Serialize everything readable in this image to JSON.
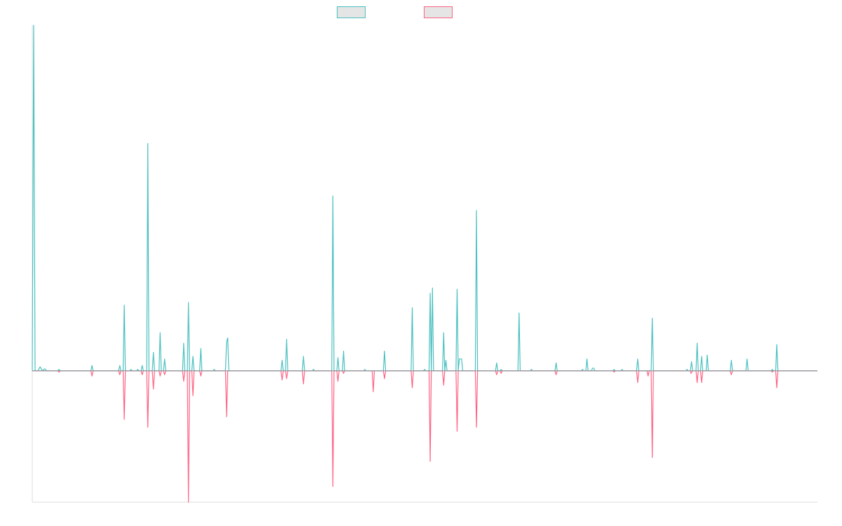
{
  "chart_data": {
    "type": "line",
    "title": "",
    "xlabel": "",
    "ylabel": "",
    "grid": false,
    "legend_position": "top-center",
    "ylim": [
      -100,
      263
    ],
    "xlim": [
      0,
      280
    ],
    "series": [
      {
        "name": "",
        "color": "#4bc0c0",
        "fill": "#e5e5e5",
        "points": [
          [
            0,
            0
          ],
          [
            0.5,
            263
          ],
          [
            1,
            0
          ],
          [
            2,
            0
          ],
          [
            2.8,
            3
          ],
          [
            3.6,
            0
          ],
          [
            4.4,
            1.5
          ],
          [
            5.2,
            0
          ],
          [
            9.1,
            0
          ],
          [
            9.5,
            1
          ],
          [
            10,
            0
          ],
          [
            20.9,
            0
          ],
          [
            21.3,
            4
          ],
          [
            21.7,
            0
          ],
          [
            30.8,
            0
          ],
          [
            31.2,
            4
          ],
          [
            31.6,
            0
          ],
          [
            32.4,
            0
          ],
          [
            32.8,
            50
          ],
          [
            33.2,
            0
          ],
          [
            34.8,
            0
          ],
          [
            35.2,
            1
          ],
          [
            35.6,
            0
          ],
          [
            37.2,
            0
          ],
          [
            37.6,
            1
          ],
          [
            38,
            0
          ],
          [
            38.8,
            0
          ],
          [
            39.2,
            4
          ],
          [
            39.6,
            0
          ],
          [
            40.8,
            0
          ],
          [
            41.2,
            173
          ],
          [
            41.6,
            0
          ],
          [
            42.8,
            0
          ],
          [
            43.2,
            14
          ],
          [
            43.6,
            0
          ],
          [
            45.2,
            0
          ],
          [
            45.6,
            29
          ],
          [
            46,
            0
          ],
          [
            46.8,
            0
          ],
          [
            47.2,
            9
          ],
          [
            47.6,
            0
          ],
          [
            53.6,
            0
          ],
          [
            54,
            21
          ],
          [
            54.4,
            0
          ],
          [
            55.3,
            0
          ],
          [
            55.7,
            52
          ],
          [
            56.1,
            0
          ],
          [
            56.9,
            0
          ],
          [
            57.3,
            11
          ],
          [
            57.7,
            0
          ],
          [
            59.7,
            0
          ],
          [
            60.1,
            17
          ],
          [
            60.5,
            0
          ],
          [
            64.5,
            0
          ],
          [
            64.9,
            1
          ],
          [
            65.3,
            0
          ],
          [
            68.9,
            0
          ],
          [
            69.3,
            22
          ],
          [
            69.7,
            25
          ],
          [
            70.1,
            0
          ],
          [
            88.7,
            0
          ],
          [
            89.1,
            8
          ],
          [
            89.5,
            0
          ],
          [
            90.3,
            0
          ],
          [
            90.7,
            24
          ],
          [
            91.1,
            0
          ],
          [
            96.3,
            0
          ],
          [
            96.7,
            11
          ],
          [
            97.1,
            0
          ],
          [
            99.9,
            0
          ],
          [
            100.3,
            1
          ],
          [
            100.7,
            0
          ],
          [
            106.8,
            0
          ],
          [
            107.2,
            133
          ],
          [
            107.6,
            0
          ],
          [
            108.6,
            0
          ],
          [
            109,
            10
          ],
          [
            109.4,
            0
          ],
          [
            110.6,
            0
          ],
          [
            111,
            15
          ],
          [
            111.4,
            0
          ],
          [
            118.2,
            0
          ],
          [
            118.6,
            1
          ],
          [
            119,
            0
          ],
          [
            125.2,
            0
          ],
          [
            125.6,
            15
          ],
          [
            126,
            0
          ],
          [
            135.1,
            0
          ],
          [
            135.5,
            48
          ],
          [
            135.9,
            0
          ],
          [
            139.5,
            0
          ],
          [
            139.9,
            1
          ],
          [
            140.3,
            0
          ],
          [
            141.5,
            0
          ],
          [
            141.9,
            59
          ],
          [
            142.3,
            0
          ],
          [
            142.7,
            63
          ],
          [
            143.1,
            0
          ],
          [
            146.3,
            0
          ],
          [
            146.7,
            29
          ],
          [
            147.1,
            0
          ],
          [
            147.5,
            8
          ],
          [
            147.9,
            0
          ],
          [
            151.1,
            0
          ],
          [
            151.5,
            62
          ],
          [
            151.9,
            0
          ],
          [
            152.3,
            9
          ],
          [
            153.1,
            9
          ],
          [
            153.5,
            0
          ],
          [
            158,
            0
          ],
          [
            158.4,
            122
          ],
          [
            158.8,
            0
          ],
          [
            165.2,
            0
          ],
          [
            165.6,
            6
          ],
          [
            166,
            0
          ],
          [
            166.8,
            0
          ],
          [
            167.2,
            1
          ],
          [
            167.6,
            0
          ],
          [
            173.2,
            0
          ],
          [
            173.6,
            44
          ],
          [
            174,
            0
          ],
          [
            177.6,
            0
          ],
          [
            178,
            1
          ],
          [
            178.4,
            0
          ],
          [
            186.4,
            0
          ],
          [
            186.8,
            6
          ],
          [
            187.2,
            0
          ],
          [
            195.8,
            0
          ],
          [
            196.2,
            1
          ],
          [
            196.6,
            0
          ],
          [
            197.4,
            0
          ],
          [
            197.8,
            9
          ],
          [
            198.2,
            0
          ],
          [
            199.4,
            0
          ],
          [
            199.8,
            2
          ],
          [
            200.2,
            2
          ],
          [
            200.6,
            0
          ],
          [
            207.1,
            0
          ],
          [
            207.5,
            1
          ],
          [
            207.9,
            0
          ],
          [
            209.9,
            0
          ],
          [
            210.3,
            1
          ],
          [
            210.7,
            0
          ],
          [
            215.5,
            0
          ],
          [
            215.9,
            9
          ],
          [
            216.3,
            0
          ],
          [
            220.7,
            0
          ],
          [
            221.1,
            40
          ],
          [
            221.5,
            0
          ],
          [
            233.1,
            0
          ],
          [
            233.5,
            1
          ],
          [
            233.9,
            0
          ],
          [
            234.7,
            0
          ],
          [
            235.1,
            7
          ],
          [
            235.5,
            0
          ],
          [
            236.7,
            0
          ],
          [
            237.1,
            21
          ],
          [
            237.5,
            0
          ],
          [
            238.3,
            0
          ],
          [
            238.7,
            11
          ],
          [
            239.1,
            0
          ],
          [
            240.3,
            0
          ],
          [
            240.7,
            12
          ],
          [
            241.1,
            0
          ],
          [
            248.9,
            0
          ],
          [
            249.3,
            8
          ],
          [
            249.7,
            0
          ],
          [
            254.5,
            0
          ],
          [
            254.9,
            9
          ],
          [
            255.3,
            0
          ],
          [
            263.5,
            0
          ],
          [
            263.9,
            1
          ],
          [
            264.3,
            0
          ],
          [
            265.1,
            0
          ],
          [
            265.5,
            20
          ],
          [
            265.9,
            0
          ],
          [
            280,
            0
          ]
        ]
      },
      {
        "name": "",
        "color": "#ff6384",
        "fill": "#e5e5e5",
        "points": [
          [
            0,
            0
          ],
          [
            9.1,
            0
          ],
          [
            9.5,
            -1
          ],
          [
            10,
            0
          ],
          [
            20.9,
            0
          ],
          [
            21.3,
            -4
          ],
          [
            21.7,
            0
          ],
          [
            30.8,
            0
          ],
          [
            31.2,
            -3
          ],
          [
            31.6,
            0
          ],
          [
            32.4,
            0
          ],
          [
            32.8,
            -37
          ],
          [
            33.2,
            0
          ],
          [
            38.8,
            0
          ],
          [
            39.2,
            -3
          ],
          [
            39.6,
            0
          ],
          [
            40.8,
            0
          ],
          [
            41.2,
            -43
          ],
          [
            41.6,
            0
          ],
          [
            42.8,
            0
          ],
          [
            43.2,
            -14
          ],
          [
            43.6,
            0
          ],
          [
            45.2,
            0
          ],
          [
            45.6,
            -4
          ],
          [
            46,
            0
          ],
          [
            46.8,
            0
          ],
          [
            47.2,
            -3
          ],
          [
            47.6,
            0
          ],
          [
            53.6,
            0
          ],
          [
            54,
            -8
          ],
          [
            54.4,
            0
          ],
          [
            55.3,
            0
          ],
          [
            55.7,
            -100
          ],
          [
            56.1,
            0
          ],
          [
            56.9,
            0
          ],
          [
            57.3,
            -19
          ],
          [
            57.7,
            0
          ],
          [
            59.7,
            0
          ],
          [
            60.1,
            -4
          ],
          [
            60.5,
            0
          ],
          [
            68.9,
            0
          ],
          [
            69.3,
            -35
          ],
          [
            69.7,
            0
          ],
          [
            88.7,
            0
          ],
          [
            89.1,
            -7
          ],
          [
            89.5,
            0
          ],
          [
            90.3,
            0
          ],
          [
            90.7,
            -6
          ],
          [
            91.1,
            0
          ],
          [
            96.3,
            0
          ],
          [
            96.7,
            -10
          ],
          [
            97.1,
            0
          ],
          [
            106.8,
            0
          ],
          [
            107.2,
            -88
          ],
          [
            107.6,
            0
          ],
          [
            108.6,
            0
          ],
          [
            109,
            -8
          ],
          [
            109.4,
            0
          ],
          [
            110.6,
            0
          ],
          [
            111,
            -2
          ],
          [
            111.4,
            0
          ],
          [
            121.2,
            0
          ],
          [
            121.6,
            -16
          ],
          [
            122,
            0
          ],
          [
            125.2,
            0
          ],
          [
            125.6,
            -6
          ],
          [
            126,
            0
          ],
          [
            135.1,
            0
          ],
          [
            135.5,
            -13
          ],
          [
            135.9,
            0
          ],
          [
            141.5,
            0
          ],
          [
            141.9,
            -69
          ],
          [
            142.3,
            0
          ],
          [
            146.3,
            0
          ],
          [
            146.7,
            -11
          ],
          [
            147.1,
            0
          ],
          [
            151.1,
            0
          ],
          [
            151.5,
            -46
          ],
          [
            151.9,
            0
          ],
          [
            158,
            0
          ],
          [
            158.4,
            -43
          ],
          [
            158.8,
            0
          ],
          [
            165.2,
            0
          ],
          [
            165.6,
            -3
          ],
          [
            166,
            0
          ],
          [
            166.8,
            0
          ],
          [
            167.2,
            -2
          ],
          [
            167.6,
            0
          ],
          [
            186.4,
            0
          ],
          [
            186.8,
            -3
          ],
          [
            187.2,
            0
          ],
          [
            207.1,
            0
          ],
          [
            207.5,
            -1
          ],
          [
            207.9,
            0
          ],
          [
            215.5,
            0
          ],
          [
            215.9,
            -9
          ],
          [
            216.3,
            0
          ],
          [
            219.2,
            0
          ],
          [
            219.6,
            -4
          ],
          [
            220,
            0
          ],
          [
            220.7,
            0
          ],
          [
            221.1,
            -66
          ],
          [
            221.5,
            0
          ],
          [
            234.7,
            0
          ],
          [
            234.9,
            -2
          ],
          [
            235.5,
            0
          ],
          [
            236.7,
            0
          ],
          [
            237.1,
            -9
          ],
          [
            237.5,
            0
          ],
          [
            238.3,
            0
          ],
          [
            238.7,
            -9
          ],
          [
            239.1,
            0
          ],
          [
            248.9,
            0
          ],
          [
            249.3,
            -3
          ],
          [
            249.7,
            0
          ],
          [
            263.5,
            0
          ],
          [
            263.9,
            -1
          ],
          [
            264.3,
            0
          ],
          [
            265.1,
            0
          ],
          [
            265.5,
            -13
          ],
          [
            265.9,
            0
          ],
          [
            280,
            0
          ]
        ]
      }
    ]
  }
}
